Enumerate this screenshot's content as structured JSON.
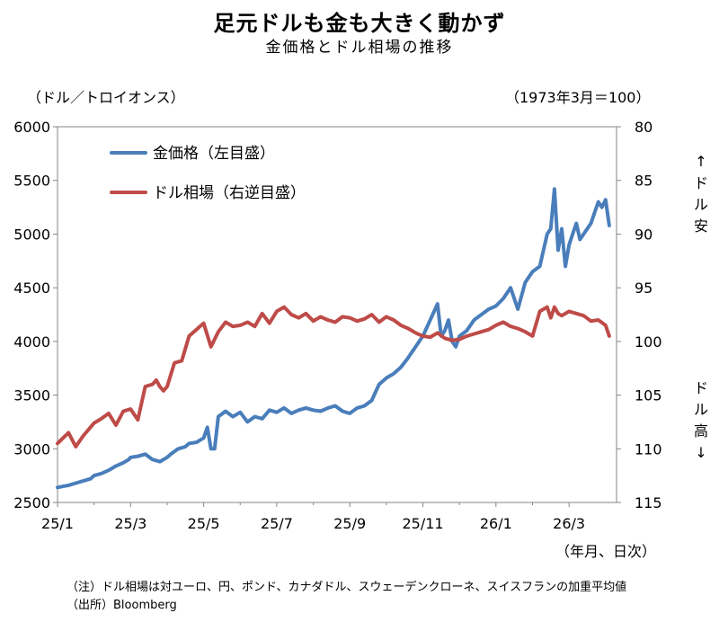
{
  "title": "足元ドルも金も大きく動かず",
  "subtitle": "金価格とドル相場の推移",
  "left_axis_unit": "（ドル／トロイオンス）",
  "right_axis_unit": "（1973年3月＝100）",
  "x_axis_unit": "（年月、日次）",
  "side_top": [
    "↑",
    "ド",
    "ル",
    "安"
  ],
  "side_bottom": [
    "ド",
    "ル",
    "高",
    "↓"
  ],
  "notes": {
    "note": "（注）ドル相場は対ユーロ、円、ポンド、カナダドル、スウェーデンクローネ、スイスフランの加重平均値",
    "source": "（出所）Bloomberg"
  },
  "colors": {
    "gold": "#4a7ebb",
    "dollar": "#be4b48",
    "axis": "#868686"
  },
  "chart_data": {
    "type": "line",
    "title": "足元ドルも金も大きく動かず",
    "x_ticks": [
      "25/1",
      "25/3",
      "25/5",
      "25/7",
      "25/9",
      "25/11",
      "26/1",
      "26/3"
    ],
    "x_range": [
      0,
      15.3
    ],
    "y_left": {
      "ticks": [
        2500,
        3000,
        3500,
        4000,
        4500,
        5000,
        5500,
        6000
      ],
      "range": [
        2500,
        6000
      ]
    },
    "y_right": {
      "ticks": [
        80,
        85,
        90,
        95,
        100,
        105,
        110,
        115
      ],
      "range": [
        80,
        115
      ],
      "inverted": true
    },
    "legend": [
      "金価格（左目盛）",
      "ドル相場（右逆目盛）"
    ],
    "series": [
      {
        "name": "金価格（左目盛）",
        "axis": "left",
        "x": [
          0,
          0.15,
          0.3,
          0.5,
          0.7,
          0.9,
          1.0,
          1.2,
          1.4,
          1.6,
          1.8,
          1.95,
          2.0,
          2.2,
          2.4,
          2.6,
          2.8,
          3.0,
          3.1,
          3.3,
          3.5,
          3.6,
          3.8,
          3.9,
          4.0,
          4.1,
          4.2,
          4.3,
          4.4,
          4.6,
          4.8,
          5.0,
          5.2,
          5.4,
          5.6,
          5.8,
          6.0,
          6.2,
          6.4,
          6.6,
          6.8,
          7.0,
          7.2,
          7.4,
          7.6,
          7.8,
          8.0,
          8.2,
          8.4,
          8.6,
          8.8,
          9.0,
          9.2,
          9.4,
          9.6,
          9.8,
          10.0,
          10.2,
          10.4,
          10.5,
          10.6,
          10.7,
          10.8,
          10.9,
          11.0,
          11.2,
          11.4,
          11.6,
          11.8,
          12.0,
          12.2,
          12.4,
          12.6,
          12.8,
          13.0,
          13.2,
          13.4,
          13.5,
          13.6,
          13.7,
          13.8,
          13.9,
          14.0,
          14.1,
          14.2,
          14.3,
          14.4,
          14.6,
          14.7,
          14.8,
          14.9,
          15.0,
          15.1
        ],
        "values": [
          2640,
          2650,
          2660,
          2680,
          2700,
          2720,
          2750,
          2770,
          2800,
          2840,
          2870,
          2900,
          2920,
          2930,
          2950,
          2900,
          2880,
          2920,
          2950,
          3000,
          3020,
          3050,
          3060,
          3080,
          3100,
          3200,
          3000,
          3000,
          3300,
          3350,
          3300,
          3340,
          3250,
          3300,
          3280,
          3360,
          3340,
          3380,
          3330,
          3360,
          3380,
          3360,
          3350,
          3380,
          3400,
          3350,
          3330,
          3380,
          3400,
          3450,
          3600,
          3660,
          3700,
          3760,
          3850,
          3950,
          4050,
          4200,
          4350,
          4050,
          4100,
          4200,
          4000,
          3950,
          4050,
          4100,
          4200,
          4250,
          4300,
          4330,
          4400,
          4500,
          4300,
          4550,
          4650,
          4700,
          5000,
          5050,
          5420,
          4850,
          5050,
          4700,
          4900,
          5000,
          5100,
          4950,
          5000,
          5100,
          5200,
          5300,
          5250,
          5320,
          5080
        ]
      },
      {
        "name": "ドル相場（右逆目盛）",
        "axis": "right",
        "x": [
          0,
          0.15,
          0.3,
          0.5,
          0.7,
          0.9,
          1.0,
          1.2,
          1.4,
          1.6,
          1.8,
          2.0,
          2.2,
          2.4,
          2.6,
          2.7,
          2.8,
          2.9,
          3.0,
          3.2,
          3.4,
          3.6,
          3.8,
          3.9,
          4.0,
          4.2,
          4.4,
          4.6,
          4.8,
          5.0,
          5.2,
          5.4,
          5.6,
          5.8,
          6.0,
          6.2,
          6.4,
          6.6,
          6.8,
          7.0,
          7.2,
          7.4,
          7.6,
          7.8,
          8.0,
          8.2,
          8.4,
          8.6,
          8.8,
          9.0,
          9.2,
          9.4,
          9.6,
          9.8,
          10.0,
          10.2,
          10.4,
          10.6,
          10.8,
          11.0,
          11.2,
          11.4,
          11.6,
          11.8,
          12.0,
          12.2,
          12.4,
          12.6,
          12.8,
          13.0,
          13.2,
          13.4,
          13.5,
          13.6,
          13.7,
          13.8,
          14.0,
          14.2,
          14.4,
          14.6,
          14.8,
          15.0,
          15.1
        ],
        "values": [
          109.5,
          109.0,
          108.5,
          109.8,
          108.8,
          108.0,
          107.6,
          107.2,
          106.7,
          107.8,
          106.5,
          106.3,
          107.3,
          104.2,
          104.0,
          103.6,
          104.2,
          104.6,
          104.2,
          102.0,
          101.8,
          99.5,
          98.9,
          98.6,
          98.3,
          100.5,
          99.1,
          98.2,
          98.6,
          98.5,
          98.2,
          98.6,
          97.4,
          98.3,
          97.2,
          96.8,
          97.5,
          97.8,
          97.4,
          98.1,
          97.7,
          98.0,
          98.2,
          97.7,
          97.8,
          98.1,
          97.9,
          97.5,
          98.2,
          97.7,
          98.0,
          98.5,
          98.8,
          99.2,
          99.5,
          99.6,
          99.2,
          99.7,
          99.9,
          99.8,
          99.5,
          99.3,
          99.1,
          98.9,
          98.5,
          98.2,
          98.6,
          98.8,
          99.1,
          99.5,
          97.2,
          96.8,
          97.8,
          96.8,
          97.4,
          97.6,
          97.2,
          97.4,
          97.6,
          98.1,
          98.0,
          98.5,
          99.5
        ]
      }
    ]
  }
}
